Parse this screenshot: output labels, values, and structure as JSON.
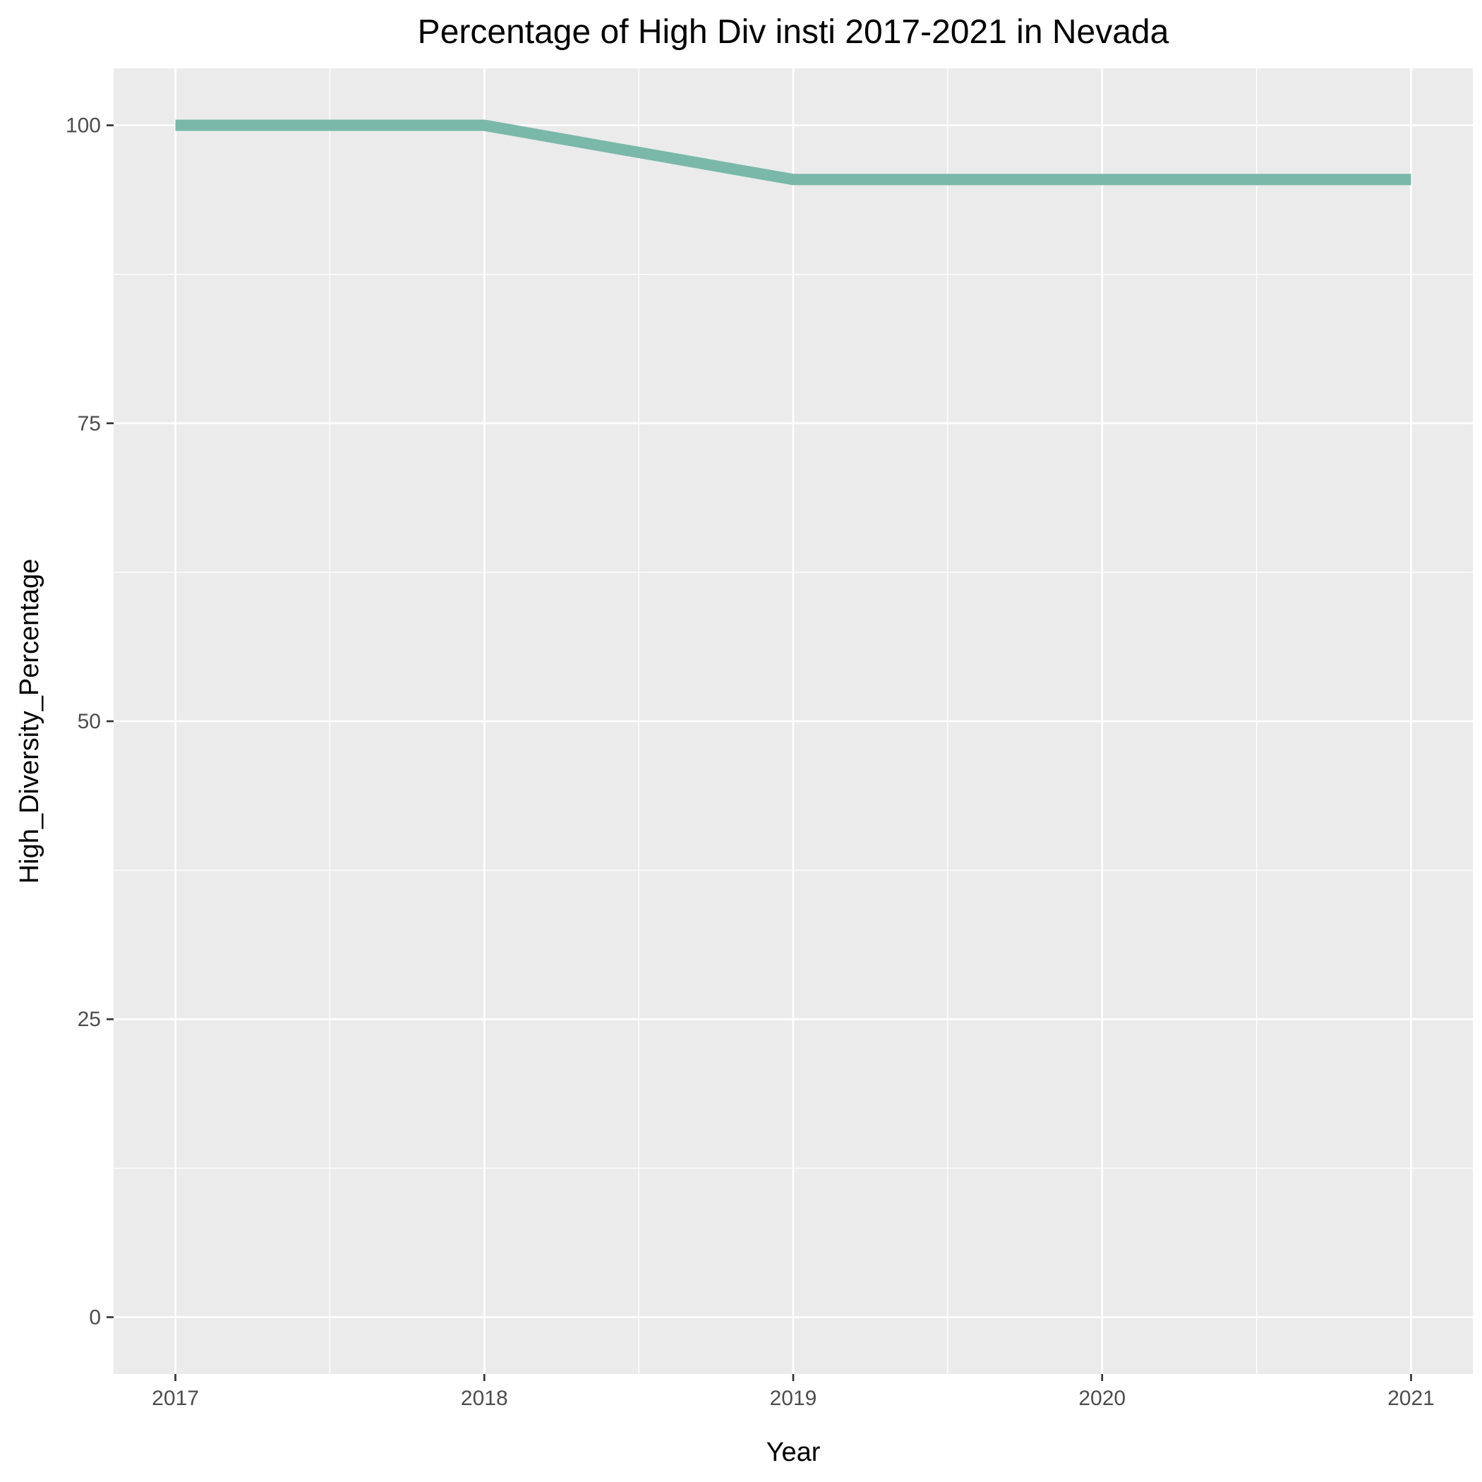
{
  "chart_data": {
    "type": "line",
    "title": "Percentage of High Div insti 2017-2021 in Nevada",
    "xlabel": "Year",
    "ylabel": "High_Diversity_Percentage",
    "x": [
      2017,
      2018,
      2019,
      2020,
      2021
    ],
    "series": [
      {
        "name": "High_Diversity_Percentage",
        "values": [
          100,
          100,
          95.45,
          95.45,
          95.45
        ],
        "color": "#7ab8a9"
      }
    ],
    "xticks": [
      "2017",
      "2018",
      "2019",
      "2020",
      "2021"
    ],
    "yticks": [
      "0",
      "25",
      "50",
      "75",
      "100"
    ],
    "ytick_values": [
      0,
      25,
      50,
      75,
      100
    ],
    "ylim": [
      -4.77,
      104.77
    ],
    "xlim": [
      2016.8,
      2021.2
    ],
    "grid": true,
    "legend": "none",
    "colors": {
      "panel_background": "#ebebeb",
      "grid_line": "#ffffff",
      "line": "#7ab8a9",
      "tick": "#333333"
    }
  }
}
